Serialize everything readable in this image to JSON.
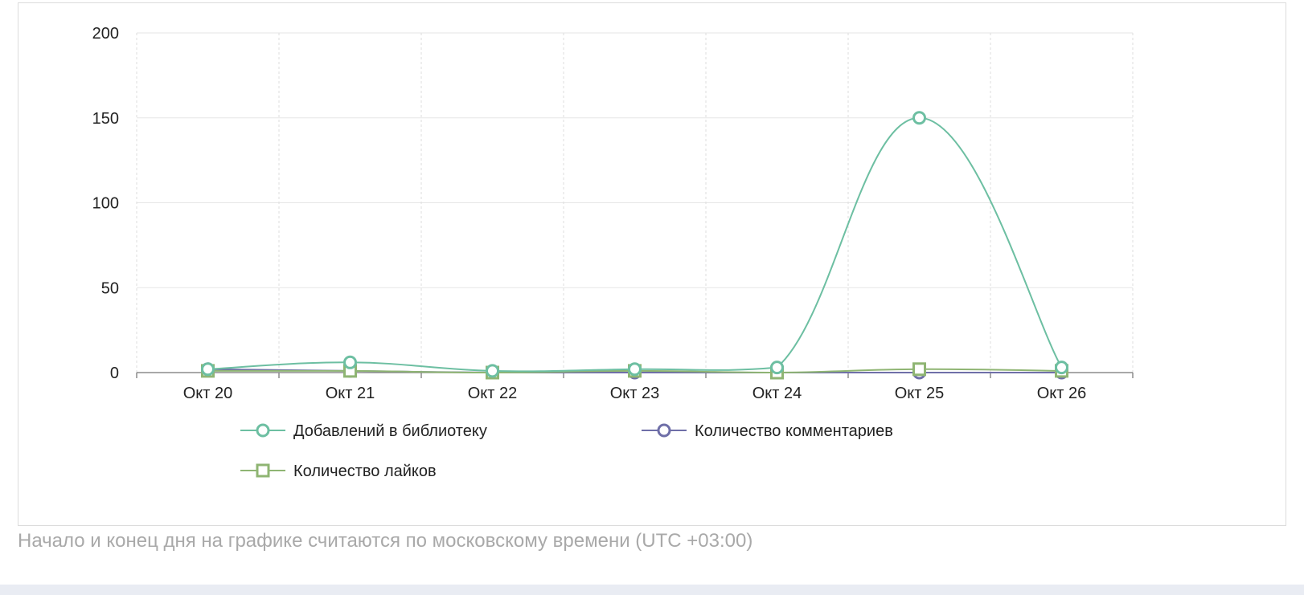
{
  "chart_data": {
    "type": "line",
    "categories": [
      "Окт 20",
      "Окт 21",
      "Окт 22",
      "Окт 23",
      "Окт 24",
      "Окт 25",
      "Окт 26"
    ],
    "ylim": [
      0,
      200
    ],
    "yticks": [
      0,
      50,
      100,
      150,
      200
    ],
    "grid": true,
    "legend_position": "bottom",
    "series": [
      {
        "name": "Добавлений в библиотеку",
        "values": [
          2,
          6,
          1,
          2,
          3,
          150,
          3
        ],
        "color": "#6dbfa2",
        "marker": "circle"
      },
      {
        "name": "Количество комментариев",
        "values": [
          2,
          1,
          0,
          0,
          0,
          0,
          0
        ],
        "color": "#6f6fa8",
        "marker": "circle"
      },
      {
        "name": "Количество лайков",
        "values": [
          1,
          1,
          0,
          1,
          0,
          2,
          1
        ],
        "color": "#8fb573",
        "marker": "square"
      }
    ]
  },
  "footnote": "Начало и конец дня на графике считаются по московскому времени (UTC +03:00)"
}
